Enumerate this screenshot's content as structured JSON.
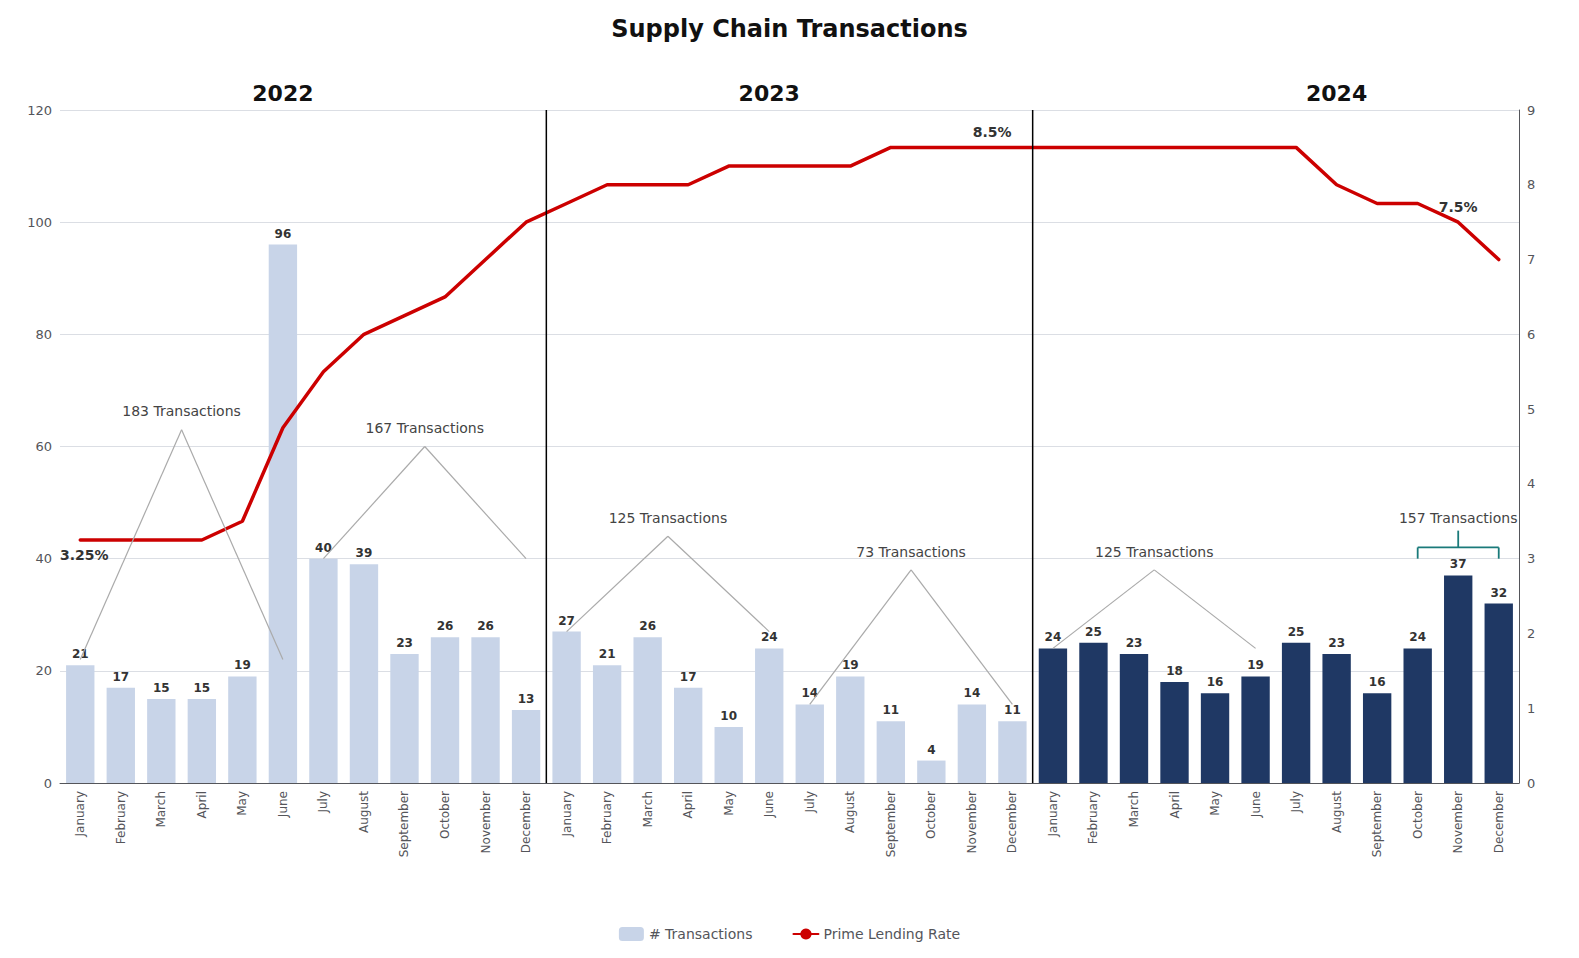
{
  "chart_data": {
    "type": "bar",
    "title": "Supply Chain Transactions",
    "categories": [
      "January",
      "February",
      "March",
      "April",
      "May",
      "June",
      "July",
      "August",
      "September",
      "October",
      "November",
      "December",
      "January",
      "February",
      "March",
      "April",
      "May",
      "June",
      "July",
      "August",
      "September",
      "October",
      "November",
      "December",
      "January",
      "February",
      "March",
      "April",
      "May",
      "June",
      "July",
      "August",
      "September",
      "October",
      "November",
      "December"
    ],
    "series": [
      {
        "name": "# Transactions",
        "type": "bar",
        "data_labels": true,
        "colors": [
          "#c8d4e8",
          "#c8d4e8",
          "#c8d4e8",
          "#c8d4e8",
          "#c8d4e8",
          "#c8d4e8",
          "#c8d4e8",
          "#c8d4e8",
          "#c8d4e8",
          "#c8d4e8",
          "#c8d4e8",
          "#c8d4e8",
          "#c8d4e8",
          "#c8d4e8",
          "#c8d4e8",
          "#c8d4e8",
          "#c8d4e8",
          "#c8d4e8",
          "#c8d4e8",
          "#c8d4e8",
          "#c8d4e8",
          "#c8d4e8",
          "#c8d4e8",
          "#c8d4e8",
          "#1f3864",
          "#1f3864",
          "#1f3864",
          "#1f3864",
          "#1f3864",
          "#1f3864",
          "#1f3864",
          "#1f3864",
          "#1f3864",
          "#1f3864",
          "#1f3864",
          "#1f3864"
        ],
        "values": [
          21,
          17,
          15,
          15,
          19,
          96,
          40,
          39,
          23,
          26,
          26,
          13,
          27,
          21,
          26,
          17,
          10,
          24,
          14,
          19,
          11,
          4,
          14,
          11,
          24,
          25,
          23,
          18,
          16,
          19,
          25,
          23,
          16,
          24,
          37,
          32
        ]
      },
      {
        "name": "Prime Lending Rate",
        "type": "line",
        "axis": "y2",
        "color": "#cc0000",
        "values": [
          3.25,
          3.25,
          3.25,
          3.25,
          3.5,
          4.75,
          5.5,
          6.0,
          6.25,
          6.5,
          7.0,
          7.5,
          7.75,
          8.0,
          8.0,
          8.0,
          8.25,
          8.25,
          8.25,
          8.25,
          8.5,
          8.5,
          8.5,
          8.5,
          8.5,
          8.5,
          8.5,
          8.5,
          8.5,
          8.5,
          8.5,
          8.0,
          7.75,
          7.75,
          7.5,
          7.0
        ]
      }
    ],
    "ylim": [
      0,
      120
    ],
    "yticks": [
      0,
      20,
      40,
      60,
      80,
      100,
      120
    ],
    "y2lim": [
      0,
      9
    ],
    "y2ticks": [
      0,
      1,
      2,
      3,
      4,
      5,
      6,
      7,
      8,
      9
    ],
    "grid": true,
    "legend": "bottom",
    "annotations": [
      "2022",
      "2023",
      "2024",
      "3.25%",
      "8.5%",
      "7.5%",
      "183 Transactions",
      "167 Transactions",
      "125 Transactions",
      "73 Transactions",
      "125 Transactions",
      "157 Transactions"
    ]
  }
}
